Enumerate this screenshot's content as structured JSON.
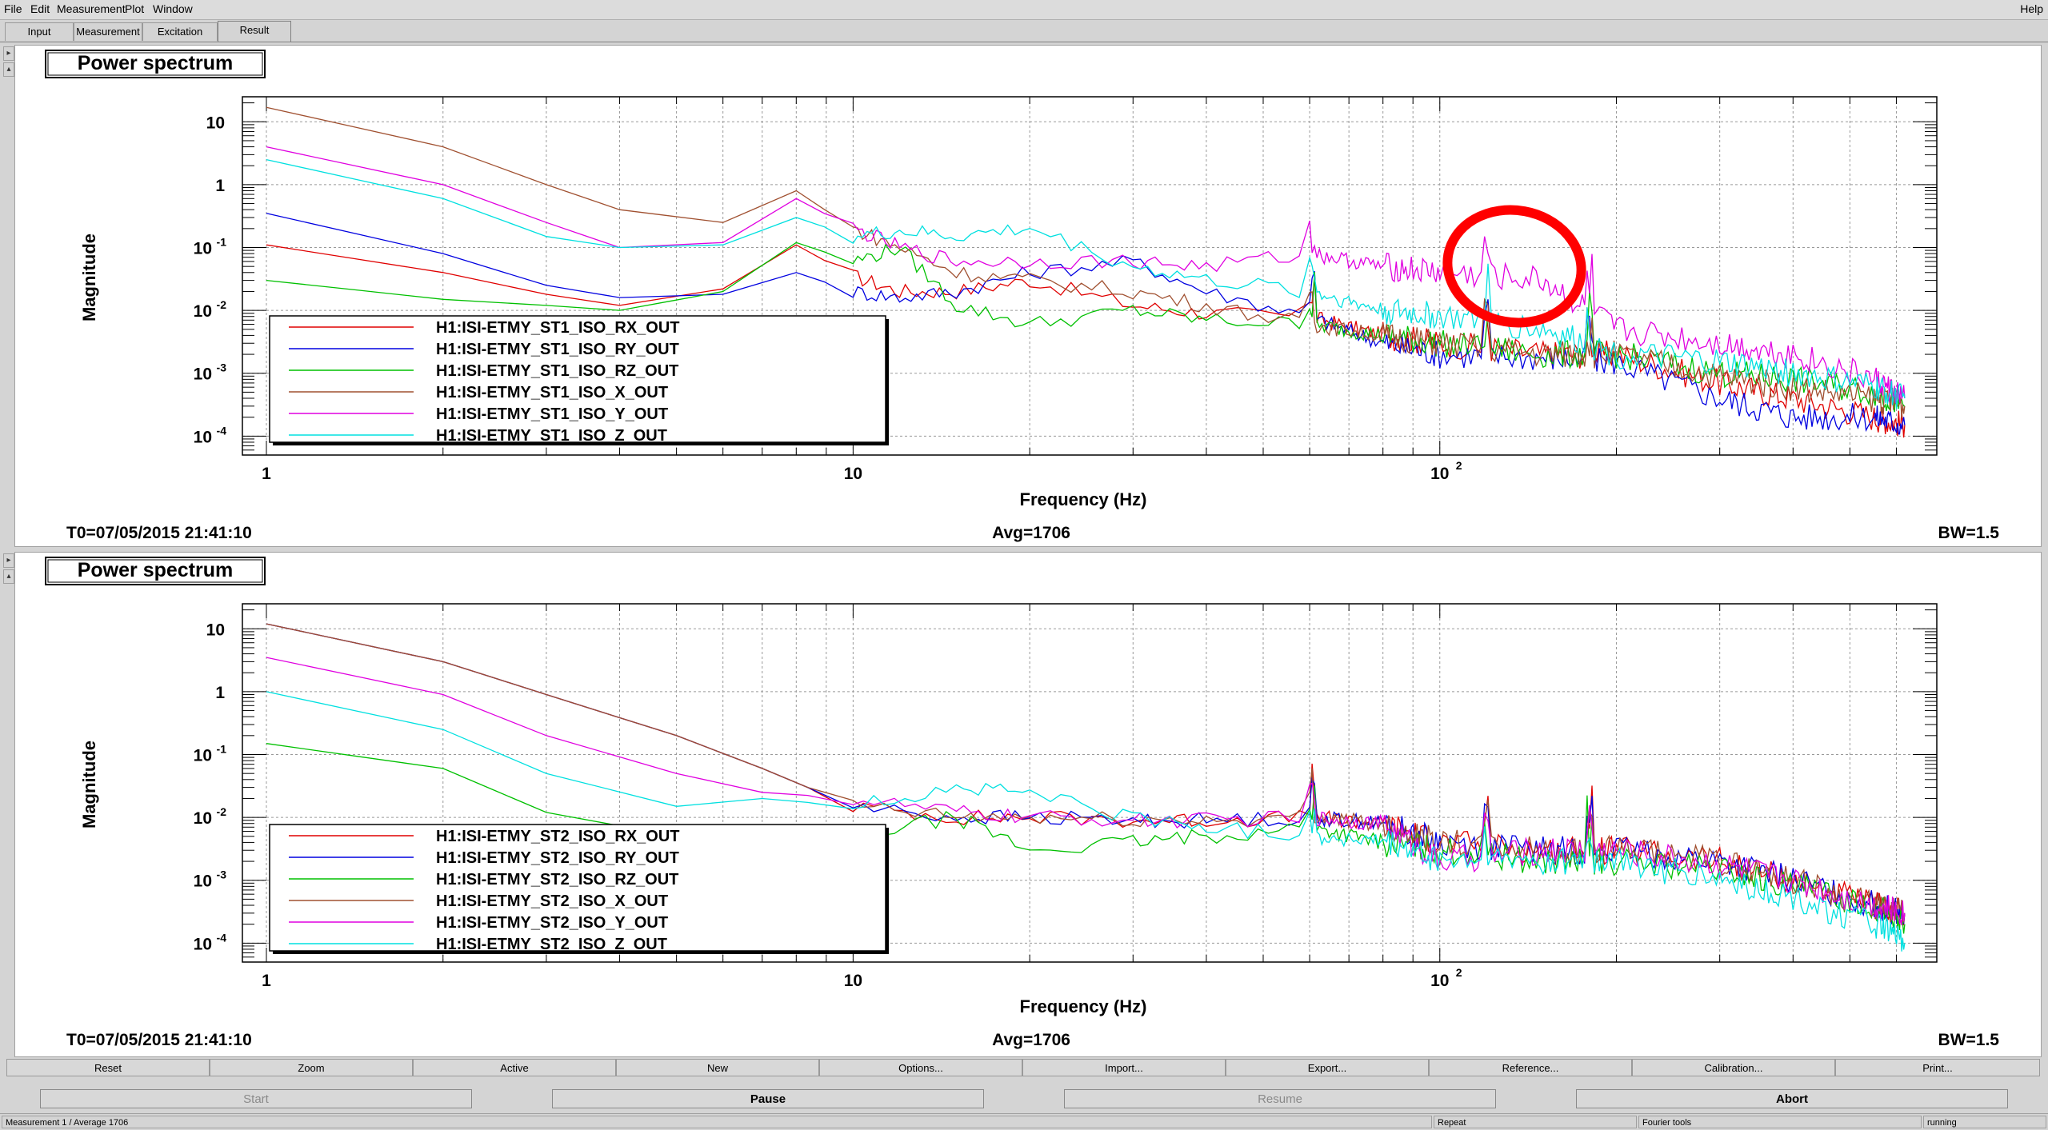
{
  "menu": {
    "items": [
      "File",
      "Edit",
      "Measurement",
      "Plot",
      "Window"
    ],
    "help": "Help"
  },
  "tabs": [
    "Input",
    "Measurement",
    "Excitation",
    "Result"
  ],
  "active_tab": "Result",
  "plots": [
    {
      "title": "Power spectrum",
      "ylabel": "Magnitude",
      "xlabel": "Frequency (Hz)",
      "t0": "T0=07/05/2015 21:41:10",
      "avg": "Avg=1706",
      "bw": "BW=1.5",
      "annotation": "red hand-drawn circle around peak near 180 Hz"
    },
    {
      "title": "Power spectrum",
      "ylabel": "Magnitude",
      "xlabel": "Frequency (Hz)",
      "t0": "T0=07/05/2015 21:41:10",
      "avg": "Avg=1706",
      "bw": "BW=1.5"
    }
  ],
  "chart_data": [
    {
      "type": "line",
      "title": "Power spectrum",
      "xlabel": "Frequency (Hz)",
      "ylabel": "Magnitude",
      "xscale": "log",
      "yscale": "log",
      "xlim": [
        1,
        640
      ],
      "ylim": [
        5e-05,
        25
      ],
      "x_ticks": [
        "1",
        "10",
        "10^2"
      ],
      "y_ticks": [
        "10^-4",
        "10^-3",
        "10^-2",
        "10^-1",
        "1",
        "10"
      ],
      "grid": true,
      "legend_position": "lower-left",
      "series": [
        {
          "name": "H1:ISI-ETMY_ST1_ISO_RX_OUT",
          "color": "#e00000",
          "x": [
            1,
            2,
            3,
            4,
            6,
            8,
            10,
            12,
            15,
            20,
            30,
            40,
            60,
            80,
            100,
            150,
            200,
            300,
            400,
            550,
            620
          ],
          "y": [
            0.11,
            0.04,
            0.018,
            0.012,
            0.022,
            0.11,
            0.035,
            0.02,
            0.02,
            0.03,
            0.012,
            0.009,
            0.008,
            0.004,
            0.003,
            0.002,
            0.002,
            0.0007,
            0.0004,
            0.0002,
            0.00015
          ]
        },
        {
          "name": "H1:ISI-ETMY_ST1_ISO_RY_OUT",
          "color": "#0000e0",
          "x": [
            1,
            2,
            3,
            4,
            6,
            8,
            10,
            12,
            15,
            20,
            30,
            40,
            60,
            80,
            100,
            150,
            200,
            300,
            400,
            550,
            620
          ],
          "y": [
            0.35,
            0.08,
            0.025,
            0.016,
            0.018,
            0.04,
            0.02,
            0.016,
            0.02,
            0.04,
            0.06,
            0.02,
            0.008,
            0.003,
            0.002,
            0.0018,
            0.0015,
            0.0004,
            0.0002,
            0.0002,
            0.00015
          ]
        },
        {
          "name": "H1:ISI-ETMY_ST1_ISO_RZ_OUT",
          "color": "#00c000",
          "x": [
            1,
            2,
            3,
            4,
            6,
            8,
            10,
            12,
            15,
            20,
            30,
            40,
            60,
            80,
            100,
            150,
            200,
            300,
            400,
            550,
            620
          ],
          "y": [
            0.03,
            0.015,
            0.012,
            0.01,
            0.02,
            0.12,
            0.06,
            0.1,
            0.012,
            0.006,
            0.01,
            0.007,
            0.006,
            0.004,
            0.003,
            0.002,
            0.002,
            0.001,
            0.0008,
            0.0005,
            0.0003
          ]
        },
        {
          "name": "H1:ISI-ETMY_ST1_ISO_X_OUT",
          "color": "#a05030",
          "x": [
            1,
            2,
            3,
            4,
            6,
            8,
            10,
            12,
            15,
            20,
            30,
            40,
            60,
            80,
            100,
            150,
            200,
            300,
            400,
            550,
            620
          ],
          "y": [
            17,
            4,
            1,
            0.4,
            0.25,
            0.8,
            0.2,
            0.1,
            0.04,
            0.03,
            0.02,
            0.012,
            0.006,
            0.004,
            0.003,
            0.002,
            0.002,
            0.0009,
            0.0006,
            0.0004,
            0.0003
          ]
        },
        {
          "name": "H1:ISI-ETMY_ST1_ISO_Y_OUT",
          "color": "#e000e0",
          "x": [
            1,
            2,
            3,
            4,
            6,
            8,
            10,
            12,
            15,
            20,
            30,
            40,
            60,
            80,
            100,
            150,
            200,
            300,
            400,
            550,
            620
          ],
          "y": [
            4,
            1,
            0.25,
            0.1,
            0.12,
            0.6,
            0.2,
            0.1,
            0.06,
            0.06,
            0.06,
            0.05,
            0.08,
            0.05,
            0.04,
            0.03,
            0.005,
            0.003,
            0.002,
            0.0008,
            0.0004
          ]
        },
        {
          "name": "H1:ISI-ETMY_ST1_ISO_Z_OUT",
          "color": "#00e0e0",
          "x": [
            1,
            2,
            3,
            4,
            6,
            8,
            10,
            12,
            15,
            20,
            30,
            40,
            60,
            80,
            100,
            150,
            200,
            300,
            400,
            550,
            620
          ],
          "y": [
            2.5,
            0.6,
            0.15,
            0.1,
            0.11,
            0.3,
            0.15,
            0.18,
            0.15,
            0.2,
            0.05,
            0.03,
            0.02,
            0.01,
            0.008,
            0.005,
            0.002,
            0.0015,
            0.001,
            0.0006,
            0.0004
          ]
        }
      ]
    },
    {
      "type": "line",
      "title": "Power spectrum",
      "xlabel": "Frequency (Hz)",
      "ylabel": "Magnitude",
      "xscale": "log",
      "yscale": "log",
      "xlim": [
        1,
        640
      ],
      "ylim": [
        5e-05,
        25
      ],
      "x_ticks": [
        "1",
        "10",
        "10^2"
      ],
      "y_ticks": [
        "10^-4",
        "10^-3",
        "10^-2",
        "10^-1",
        "1",
        "10"
      ],
      "grid": true,
      "legend_position": "lower-left",
      "series": [
        {
          "name": "H1:ISI-ETMY_ST2_ISO_RX_OUT",
          "color": "#e00000",
          "x": [
            1,
            2,
            3,
            5,
            7,
            10,
            15,
            20,
            30,
            40,
            60,
            80,
            100,
            150,
            200,
            300,
            400,
            550,
            620
          ],
          "y": [
            12,
            3,
            0.9,
            0.2,
            0.06,
            0.015,
            0.01,
            0.01,
            0.009,
            0.009,
            0.01,
            0.008,
            0.004,
            0.003,
            0.003,
            0.002,
            0.001,
            0.0004,
            0.0003
          ]
        },
        {
          "name": "H1:ISI-ETMY_ST2_ISO_RY_OUT",
          "color": "#0000e0",
          "x": [
            1,
            2,
            3,
            5,
            7,
            10,
            15,
            20,
            30,
            40,
            60,
            80,
            100,
            150,
            200,
            300,
            400,
            550,
            620
          ],
          "y": [
            12,
            3,
            0.9,
            0.2,
            0.06,
            0.015,
            0.01,
            0.01,
            0.009,
            0.009,
            0.01,
            0.008,
            0.004,
            0.003,
            0.003,
            0.002,
            0.001,
            0.0004,
            0.0003
          ]
        },
        {
          "name": "H1:ISI-ETMY_ST2_ISO_RZ_OUT",
          "color": "#00c000",
          "x": [
            1,
            2,
            3,
            5,
            7,
            10,
            15,
            20,
            30,
            40,
            60,
            80,
            100,
            150,
            200,
            300,
            400,
            550,
            620
          ],
          "y": [
            0.15,
            0.06,
            0.012,
            0.005,
            0.004,
            0.005,
            0.01,
            0.003,
            0.004,
            0.005,
            0.007,
            0.004,
            0.003,
            0.002,
            0.002,
            0.0015,
            0.0008,
            0.0004,
            0.0002
          ]
        },
        {
          "name": "H1:ISI-ETMY_ST2_ISO_X_OUT",
          "color": "#a05030",
          "x": [
            1,
            2,
            3,
            5,
            7,
            10,
            15,
            20,
            30,
            40,
            60,
            80,
            100,
            150,
            200,
            300,
            400,
            550,
            620
          ],
          "y": [
            12,
            3,
            0.9,
            0.2,
            0.06,
            0.015,
            0.01,
            0.01,
            0.009,
            0.009,
            0.01,
            0.008,
            0.004,
            0.003,
            0.003,
            0.002,
            0.001,
            0.0004,
            0.0003
          ]
        },
        {
          "name": "H1:ISI-ETMY_ST2_ISO_Y_OUT",
          "color": "#e000e0",
          "x": [
            1,
            2,
            3,
            5,
            7,
            10,
            15,
            20,
            30,
            40,
            60,
            80,
            100,
            150,
            200,
            300,
            400,
            550,
            620
          ],
          "y": [
            3.5,
            0.9,
            0.2,
            0.05,
            0.025,
            0.02,
            0.012,
            0.01,
            0.009,
            0.009,
            0.01,
            0.008,
            0.002,
            0.003,
            0.003,
            0.0018,
            0.001,
            0.0004,
            0.0003
          ]
        },
        {
          "name": "H1:ISI-ETMY_ST2_ISO_Z_OUT",
          "color": "#00e0e0",
          "x": [
            1,
            2,
            3,
            5,
            7,
            10,
            15,
            20,
            30,
            40,
            60,
            80,
            100,
            150,
            200,
            300,
            400,
            550,
            620
          ],
          "y": [
            1,
            0.25,
            0.05,
            0.015,
            0.02,
            0.015,
            0.03,
            0.025,
            0.01,
            0.007,
            0.005,
            0.004,
            0.002,
            0.002,
            0.002,
            0.001,
            0.0005,
            0.0002,
            0.0001
          ]
        }
      ]
    }
  ],
  "buttons_row1": [
    "Reset",
    "Zoom",
    "Active",
    "New",
    "Options...",
    "Import...",
    "Export...",
    "Reference...",
    "Calibration...",
    "Print..."
  ],
  "buttons_row2": [
    "Start",
    "Pause",
    "Resume",
    "Abort"
  ],
  "status": {
    "left": "Measurement 1 / Average 1706",
    "mode": "Repeat",
    "tools": "Fourier tools",
    "state": "running"
  },
  "colors": {
    "panel_bg": "#ffffff",
    "window_bg": "#d4d4d4",
    "annotation": "#ff0000"
  }
}
